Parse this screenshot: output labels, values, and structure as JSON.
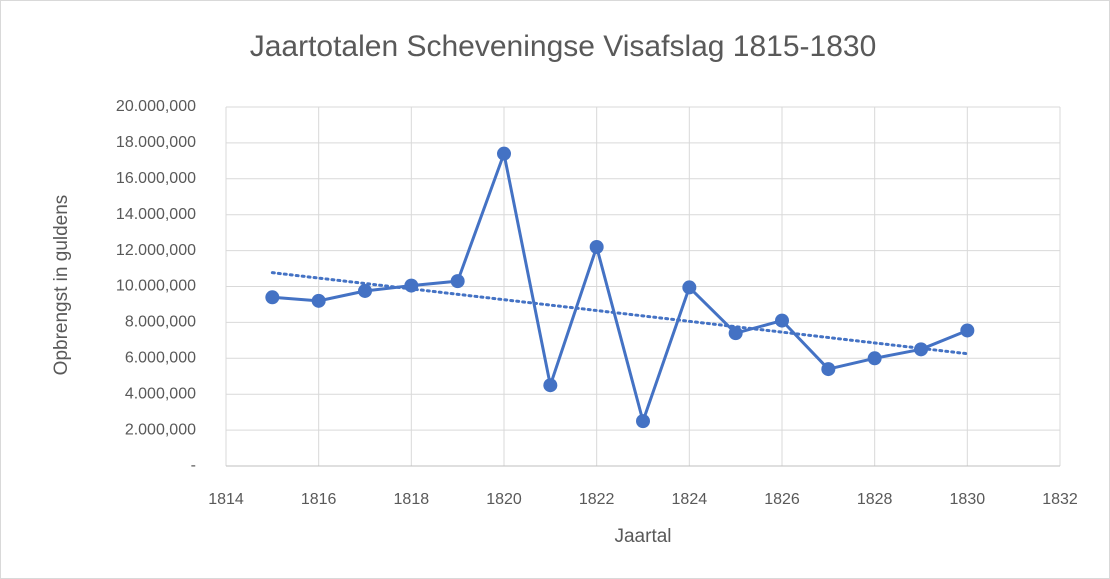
{
  "chart_data": {
    "type": "line",
    "title": "Jaartotalen Scheveningse Visafslag 1815-1830",
    "xlabel": "Jaartal",
    "ylabel": "Opbrengst in guldens",
    "x": [
      1815,
      1816,
      1817,
      1818,
      1819,
      1820,
      1821,
      1822,
      1823,
      1824,
      1825,
      1826,
      1827,
      1828,
      1829,
      1830
    ],
    "series": [
      {
        "color": "#4472c4",
        "values": [
          9400000,
          9200000,
          9750000,
          10050000,
          10300000,
          17400000,
          4500000,
          12200000,
          2500000,
          9950000,
          7400000,
          8100000,
          5400000,
          6000000,
          6500000,
          7550000
        ]
      }
    ],
    "trendline": "linear",
    "xlim": [
      1814,
      1832
    ],
    "xticks": [
      1814,
      1816,
      1818,
      1820,
      1822,
      1824,
      1826,
      1828,
      1830,
      1832
    ],
    "ylim": [
      0,
      20000000
    ],
    "yticks": [
      {
        "value": 0,
        "label": "-"
      },
      {
        "value": 2000000,
        "label": "2.000,000"
      },
      {
        "value": 4000000,
        "label": "4.000,000"
      },
      {
        "value": 6000000,
        "label": "6.000,000"
      },
      {
        "value": 8000000,
        "label": "8.000,000"
      },
      {
        "value": 10000000,
        "label": "10.000,000"
      },
      {
        "value": 12000000,
        "label": "12.000,000"
      },
      {
        "value": 14000000,
        "label": "14.000,000"
      },
      {
        "value": 16000000,
        "label": "16.000,000"
      },
      {
        "value": 18000000,
        "label": "18.000,000"
      },
      {
        "value": 20000000,
        "label": "20.000,000"
      }
    ],
    "grid": true
  }
}
